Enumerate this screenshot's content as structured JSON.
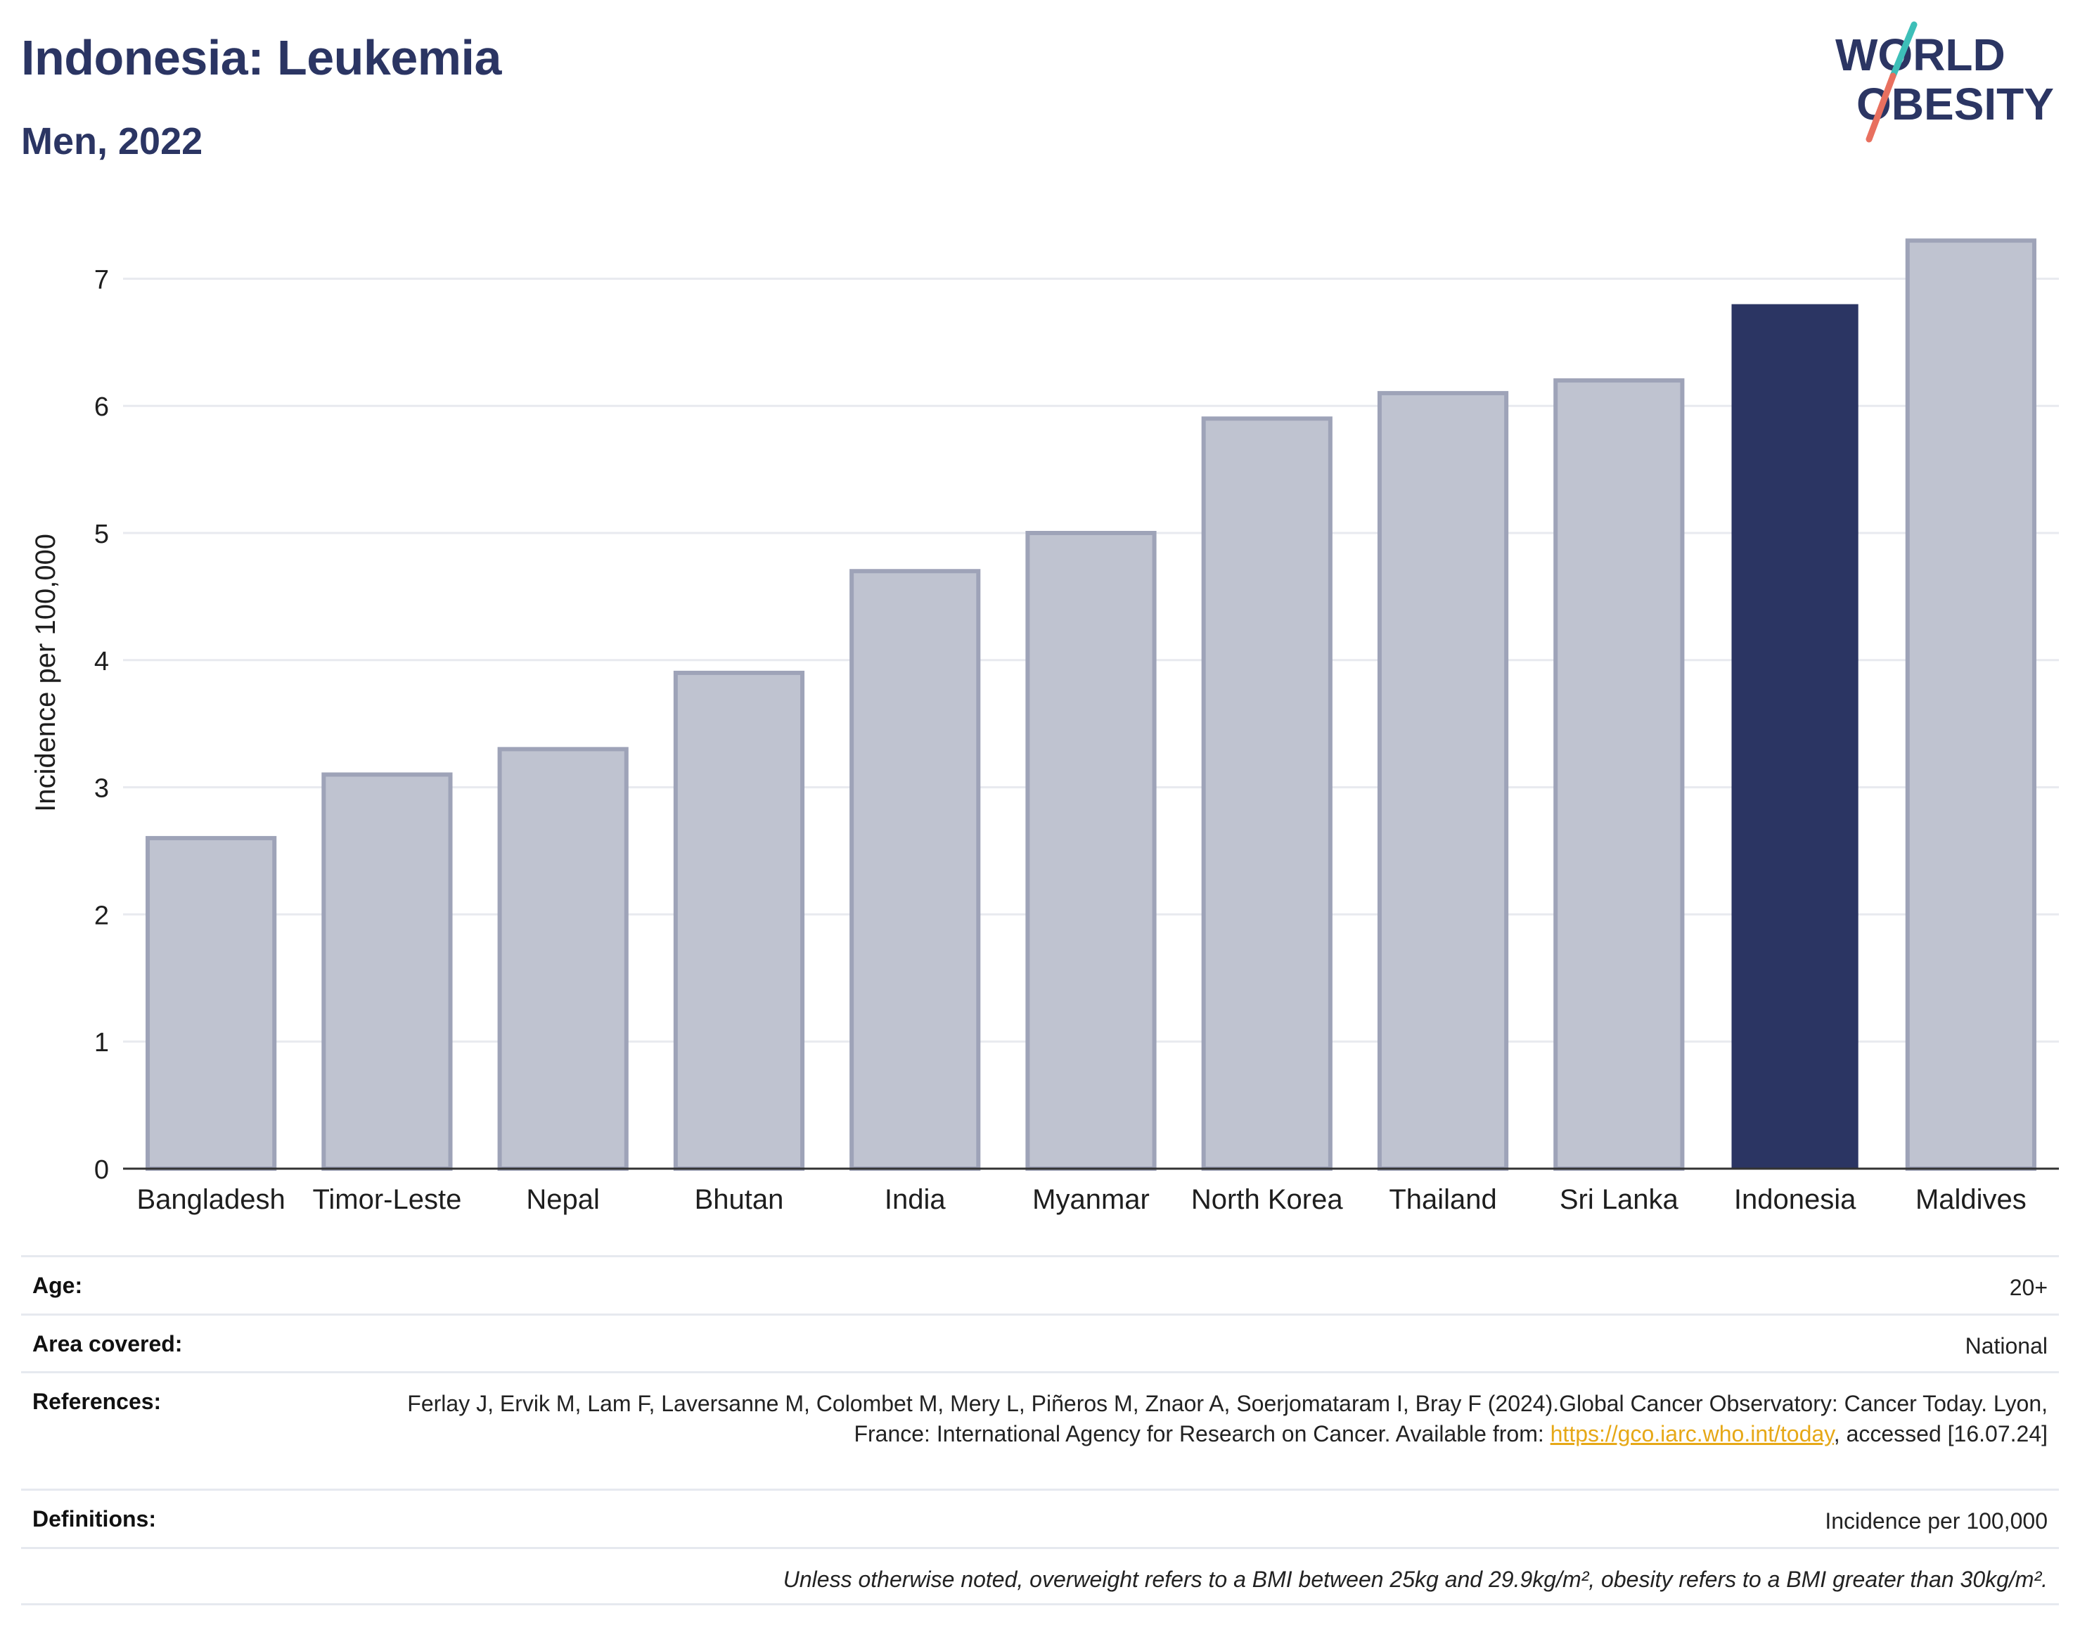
{
  "header": {
    "title": "Indonesia: Leukemia",
    "subtitle": "Men, 2022"
  },
  "logo": {
    "line1": "WORLD",
    "line2": "OBESITY",
    "colors": {
      "text": "#2b3563",
      "slash_teal": "#3dbfb8",
      "slash_coral": "#e8705f"
    }
  },
  "chart_data": {
    "type": "bar",
    "categories": [
      "Bangladesh",
      "Timor-Leste",
      "Nepal",
      "Bhutan",
      "India",
      "Myanmar",
      "North Korea",
      "Thailand",
      "Sri Lanka",
      "Indonesia",
      "Maldives"
    ],
    "values": [
      2.6,
      3.1,
      3.3,
      3.9,
      4.7,
      5.0,
      5.9,
      6.1,
      6.2,
      6.8,
      7.3
    ],
    "highlight": "Indonesia",
    "ylabel": "Incidence per 100,000",
    "xlabel": "",
    "ylim": [
      0,
      7.4
    ],
    "yticks": [
      0,
      1,
      2,
      3,
      4,
      5,
      6,
      7
    ],
    "grid": true,
    "colors": {
      "bar": "#bfc3d0",
      "bar_border": "#9ea3b8",
      "highlight": "#2b3563",
      "grid": "#e8eaef",
      "axis": "#333333"
    }
  },
  "info": {
    "age_label": "Age:",
    "age_value": "20+",
    "area_label": "Area covered:",
    "area_value": "National",
    "references_label": "References:",
    "references_text1": "Ferlay J, Ervik M, Lam F, Laversanne M, Colombet M, Mery L, Piñeros M, Znaor A, Soerjomataram I, Bray F (2024).Global Cancer Observatory: Cancer Today. Lyon, France: International Agency for Research on Cancer. Available from: ",
    "references_link": "https://gco.iarc.who.int/today",
    "references_text2": ", accessed [16.07.24]",
    "definitions_label": "Definitions:",
    "definitions_value": "Incidence per 100,000",
    "note": "Unless otherwise noted, overweight refers to a BMI between 25kg and 29.9kg/m², obesity refers to a BMI greater than 30kg/m²."
  }
}
